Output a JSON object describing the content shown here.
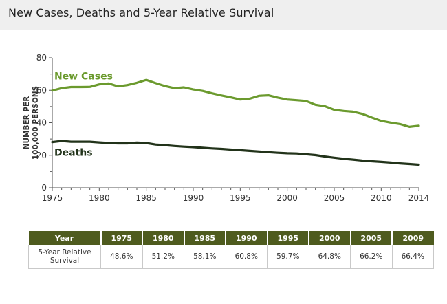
{
  "header": {
    "title": "New Cases, Deaths and 5-Year Relative Survival"
  },
  "chart_data": {
    "type": "line",
    "ylabel_line1": "NUMBER PER",
    "ylabel_line2": "100,000 PERSONS",
    "ylim": [
      0,
      80
    ],
    "xlim": [
      1975,
      2014
    ],
    "yticks": [
      0,
      20,
      40,
      60,
      80
    ],
    "xticks": [
      1975,
      1980,
      1985,
      1990,
      1995,
      2000,
      2005,
      2010,
      2014
    ],
    "series": [
      {
        "name": "New Cases",
        "color": "#6b9a2e",
        "x": [
          1975,
          1976,
          1977,
          1978,
          1979,
          1980,
          1981,
          1982,
          1983,
          1984,
          1985,
          1986,
          1987,
          1988,
          1989,
          1990,
          1991,
          1992,
          1993,
          1994,
          1995,
          1996,
          1997,
          1998,
          1999,
          2000,
          2001,
          2002,
          2003,
          2004,
          2005,
          2006,
          2007,
          2008,
          2009,
          2010,
          2011,
          2012,
          2013,
          2014
        ],
        "values": [
          59.8,
          61.3,
          62.0,
          62.0,
          62.1,
          63.6,
          64.2,
          62.4,
          63.2,
          64.6,
          66.4,
          64.4,
          62.6,
          61.3,
          61.8,
          60.5,
          59.6,
          58.1,
          56.8,
          55.6,
          54.3,
          54.8,
          56.6,
          56.9,
          55.5,
          54.3,
          53.9,
          53.4,
          51.1,
          50.2,
          48.0,
          47.3,
          46.8,
          45.4,
          43.2,
          41.2,
          40.1,
          39.2,
          37.5,
          38.2
        ]
      },
      {
        "name": "Deaths",
        "color": "#22331a",
        "x": [
          1975,
          1976,
          1977,
          1978,
          1979,
          1980,
          1981,
          1982,
          1983,
          1984,
          1985,
          1986,
          1987,
          1988,
          1989,
          1990,
          1991,
          1992,
          1993,
          1994,
          1995,
          1996,
          1997,
          1998,
          1999,
          2000,
          2001,
          2002,
          2003,
          2004,
          2005,
          2006,
          2007,
          2008,
          2009,
          2010,
          2011,
          2012,
          2013,
          2014
        ],
        "values": [
          28.1,
          28.8,
          28.3,
          28.3,
          28.3,
          27.9,
          27.5,
          27.3,
          27.3,
          27.8,
          27.5,
          26.6,
          26.2,
          25.7,
          25.3,
          25.0,
          24.6,
          24.2,
          23.9,
          23.5,
          23.1,
          22.7,
          22.3,
          21.9,
          21.5,
          21.2,
          21.1,
          20.6,
          20.1,
          19.2,
          18.5,
          17.8,
          17.3,
          16.7,
          16.3,
          15.9,
          15.5,
          15.0,
          14.6,
          14.2
        ]
      }
    ]
  },
  "survival_table": {
    "header_label": "Year",
    "years": [
      "1975",
      "1980",
      "1985",
      "1990",
      "1995",
      "2000",
      "2005",
      "2009"
    ],
    "row_label": "5-Year Relative Survival",
    "values": [
      "48.6%",
      "51.2%",
      "58.1%",
      "60.8%",
      "59.7%",
      "64.8%",
      "66.2%",
      "66.4%"
    ]
  }
}
